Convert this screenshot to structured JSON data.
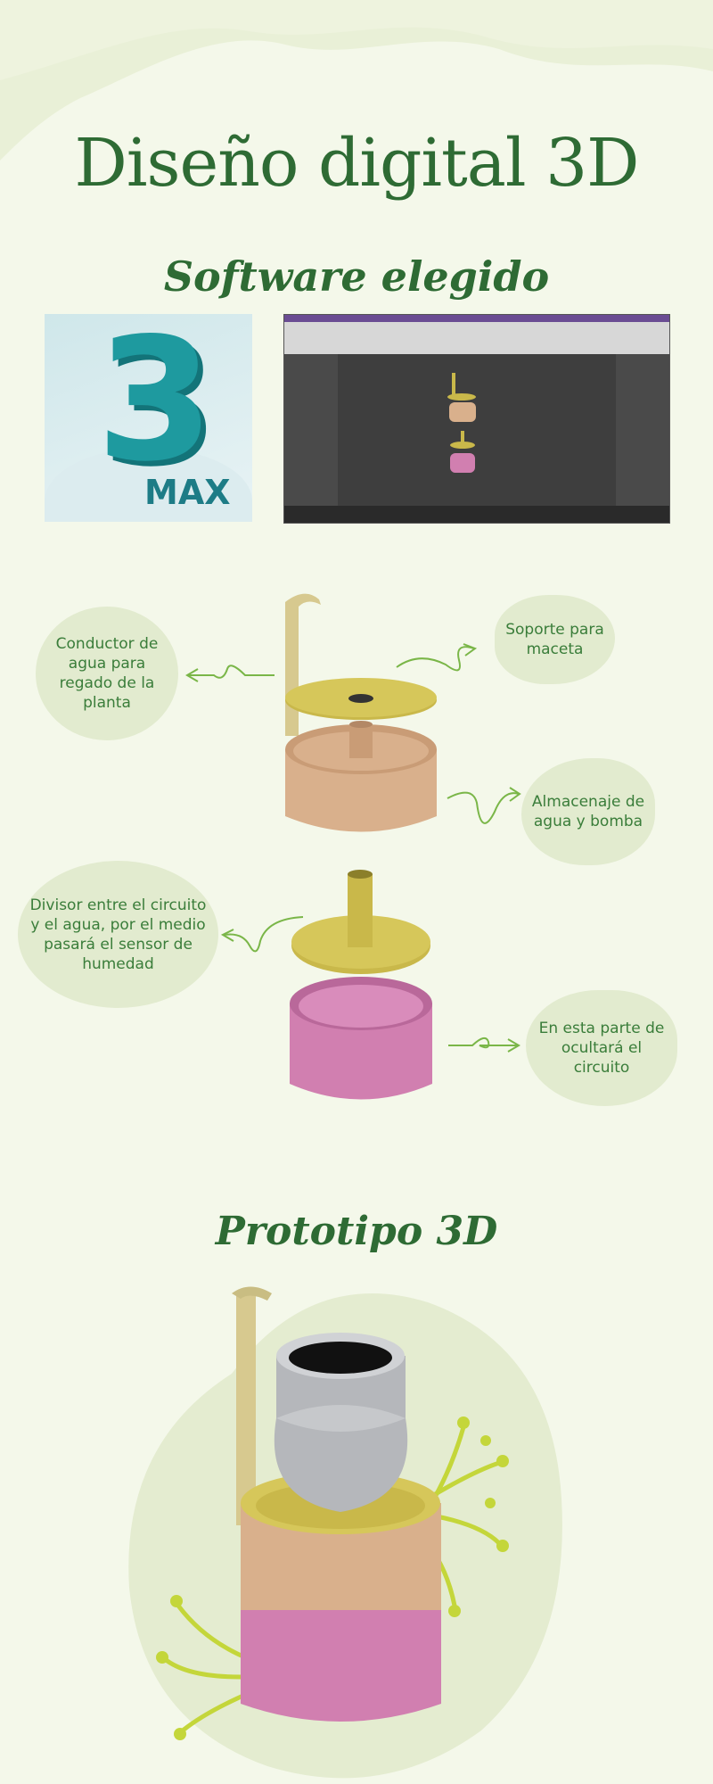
{
  "title": "Diseño digital 3D",
  "section_software": "Software elegido",
  "logo": {
    "number": "3",
    "text": "MAX"
  },
  "parts": {
    "conductor": "Conductor de agua para regado de la planta",
    "soporte": "Soporte para maceta",
    "almacenaje": "Almacenaje de agua y bomba",
    "divisor": "Divisor entre el circuito y el agua, por el medio pasará el sensor de humedad",
    "circuito": "En esta parte de ocultará el circuito"
  },
  "section_prototype": "Prototipo 3D",
  "colors": {
    "background": "#f4f8ea",
    "accent_green": "#2e6b34",
    "bubble": "#e2ebcf",
    "arrow": "#7ab648",
    "tan": "#d9b08c",
    "olive": "#c9b84a",
    "pink": "#d17fb0",
    "gray": "#b5b7bb"
  }
}
